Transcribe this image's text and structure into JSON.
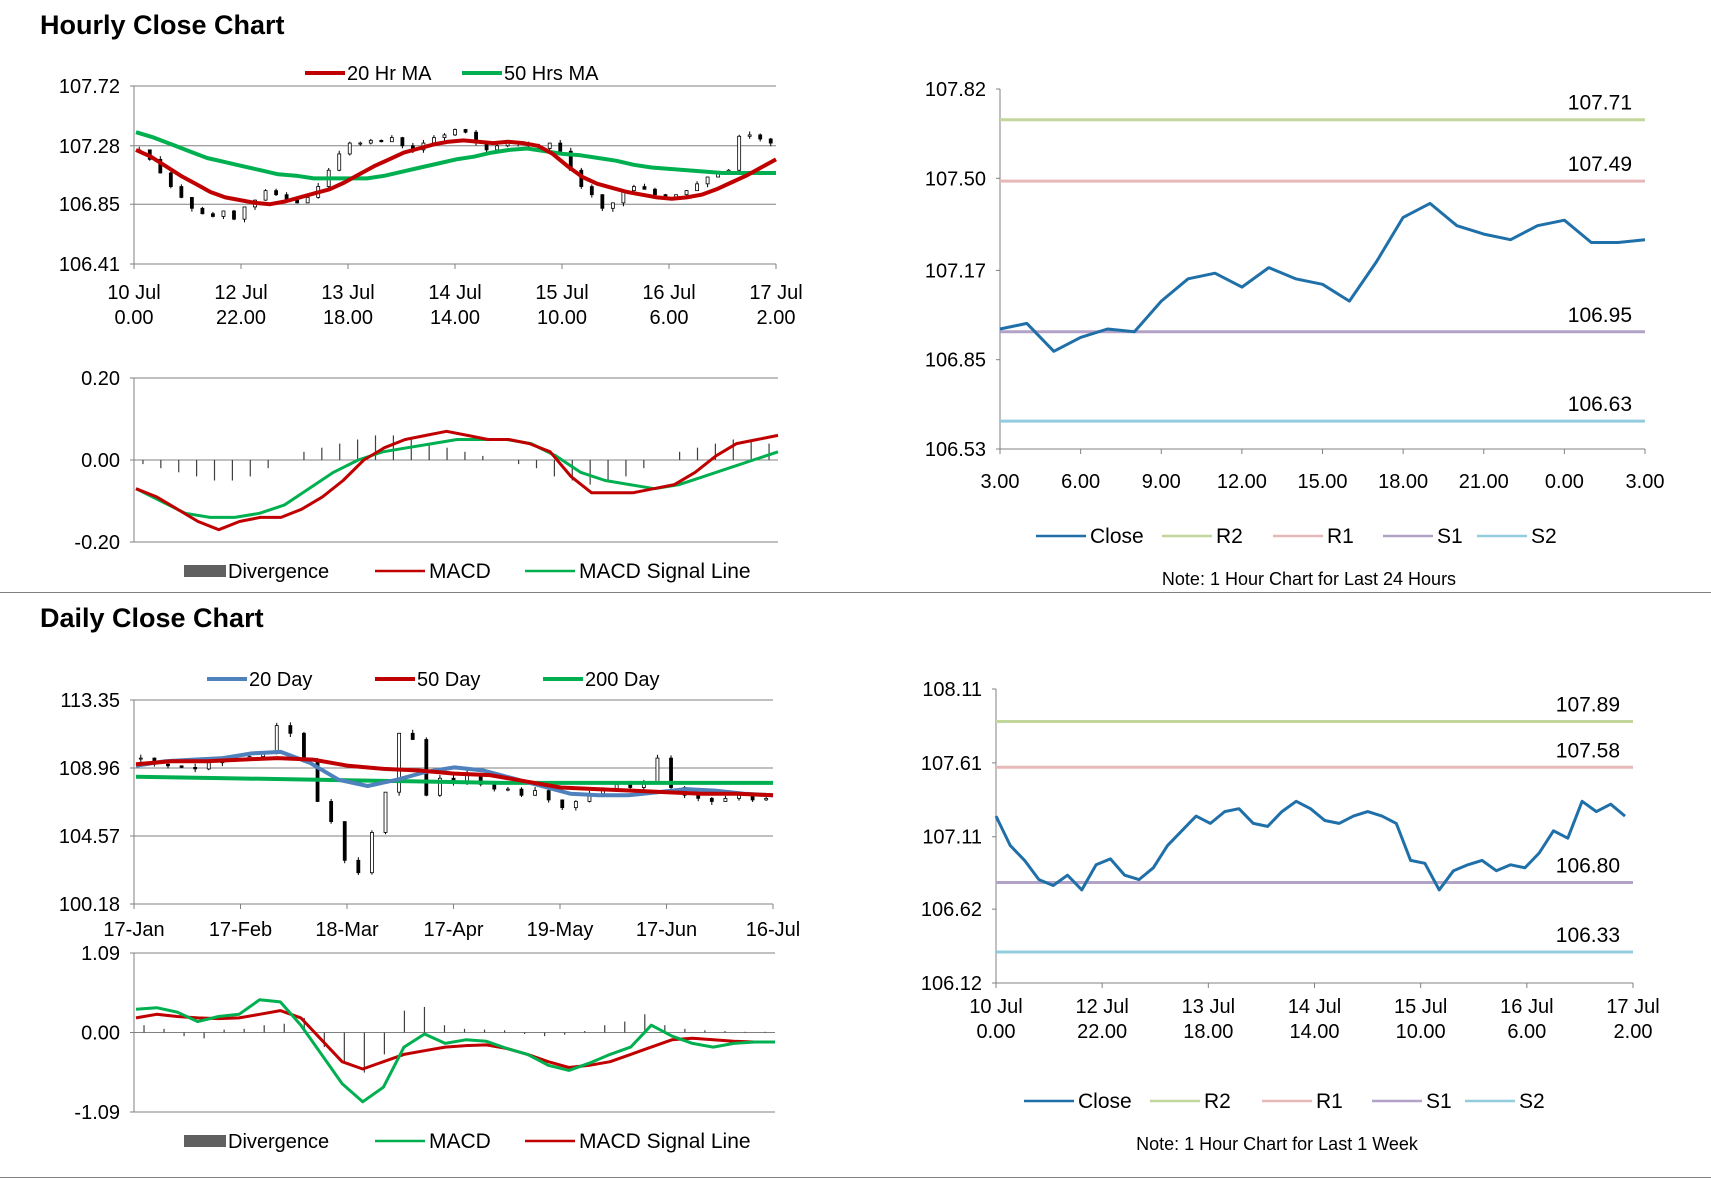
{
  "sections": {
    "hourly_title": "Hourly Close Chart",
    "daily_title": "Daily Close Chart"
  },
  "chart_data": [
    {
      "id": "hourly_price",
      "type": "candlestick+line",
      "title": "",
      "y_ticks": [
        "107.72",
        "107.28",
        "106.85",
        "106.41"
      ],
      "ylim": [
        106.41,
        107.72
      ],
      "x_ticks": [
        [
          "10 Jul",
          "0.00"
        ],
        [
          "12 Jul",
          "22.00"
        ],
        [
          "13 Jul",
          "18.00"
        ],
        [
          "14 Jul",
          "14.00"
        ],
        [
          "15 Jul",
          "10.00"
        ],
        [
          "16 Jul",
          "6.00"
        ],
        [
          "17 Jul",
          "2.00"
        ]
      ],
      "legend": [
        "20 Hr MA",
        "50 Hrs MA"
      ],
      "colors": {
        "ma20": "#c00000",
        "ma50": "#00b050",
        "candle": "#000000"
      },
      "close": [
        107.25,
        107.18,
        107.08,
        106.98,
        106.9,
        106.82,
        106.78,
        106.76,
        106.8,
        106.74,
        106.83,
        106.88,
        106.95,
        106.92,
        106.88,
        106.86,
        106.9,
        106.98,
        107.1,
        107.22,
        107.3,
        107.3,
        107.32,
        107.31,
        107.34,
        107.28,
        107.25,
        107.3,
        107.34,
        107.36,
        107.4,
        107.38,
        107.3,
        107.25,
        107.28,
        107.3,
        107.3,
        107.28,
        107.26,
        107.3,
        107.24,
        107.1,
        106.98,
        106.92,
        106.82,
        106.86,
        106.95,
        106.98,
        106.96,
        106.92,
        106.9,
        106.92,
        106.95,
        107.0,
        107.05,
        107.08,
        107.1,
        107.35,
        107.36,
        107.33,
        107.3
      ],
      "ma20": [
        107.25,
        107.2,
        107.13,
        107.06,
        107.0,
        106.94,
        106.9,
        106.88,
        106.86,
        106.85,
        106.87,
        106.9,
        106.93,
        106.96,
        107.01,
        107.07,
        107.13,
        107.18,
        107.23,
        107.26,
        107.29,
        107.31,
        107.32,
        107.31,
        107.3,
        107.31,
        107.3,
        107.28,
        107.22,
        107.13,
        107.05,
        107.0,
        106.97,
        106.94,
        106.92,
        106.9,
        106.89,
        106.9,
        106.92,
        106.96,
        107.01,
        107.06,
        107.12,
        107.18
      ],
      "ma50": [
        107.38,
        107.34,
        107.29,
        107.24,
        107.19,
        107.16,
        107.13,
        107.1,
        107.07,
        107.06,
        107.04,
        107.04,
        107.04,
        107.04,
        107.06,
        107.09,
        107.12,
        107.15,
        107.18,
        107.2,
        107.23,
        107.25,
        107.26,
        107.24,
        107.22,
        107.21,
        107.19,
        107.17,
        107.14,
        107.12,
        107.11,
        107.1,
        107.09,
        107.08,
        107.08,
        107.08,
        107.08
      ]
    },
    {
      "id": "hourly_macd",
      "type": "macd",
      "y_ticks": [
        "0.20",
        "0.00",
        "-0.20"
      ],
      "ylim": [
        -0.2,
        0.2
      ],
      "legend": [
        "Divergence",
        "MACD",
        "MACD Signal Line"
      ],
      "colors": {
        "macd": "#c00000",
        "signal": "#00b050",
        "divergence": "#404040"
      },
      "macd": [
        -0.07,
        -0.09,
        -0.12,
        -0.15,
        -0.17,
        -0.15,
        -0.14,
        -0.14,
        -0.12,
        -0.09,
        -0.05,
        0.0,
        0.03,
        0.05,
        0.06,
        0.07,
        0.06,
        0.05,
        0.05,
        0.04,
        0.02,
        -0.04,
        -0.08,
        -0.08,
        -0.08,
        -0.07,
        -0.06,
        -0.03,
        0.01,
        0.04,
        0.05,
        0.06
      ],
      "signal": [
        -0.07,
        -0.1,
        -0.13,
        -0.14,
        -0.14,
        -0.13,
        -0.11,
        -0.07,
        -0.03,
        0.0,
        0.02,
        0.03,
        0.04,
        0.05,
        0.05,
        0.05,
        0.04,
        0.01,
        -0.03,
        -0.05,
        -0.06,
        -0.07,
        -0.06,
        -0.04,
        -0.02,
        0.0,
        0.02
      ],
      "divergence": [
        -0.01,
        -0.02,
        -0.03,
        -0.04,
        -0.05,
        -0.05,
        -0.04,
        -0.02,
        0.0,
        0.02,
        0.03,
        0.04,
        0.05,
        0.06,
        0.06,
        0.05,
        0.04,
        0.03,
        0.02,
        0.01,
        0.0,
        -0.01,
        -0.02,
        -0.04,
        -0.05,
        -0.06,
        -0.05,
        -0.04,
        -0.02,
        0.0,
        0.02,
        0.03,
        0.04,
        0.05,
        0.05,
        0.04
      ]
    },
    {
      "id": "hourly_24h",
      "type": "line",
      "y_ticks": [
        "107.82",
        "107.50",
        "107.17",
        "106.85",
        "106.53"
      ],
      "ylim": [
        106.53,
        107.82
      ],
      "x_ticks": [
        "3.00",
        "6.00",
        "9.00",
        "12.00",
        "15.00",
        "18.00",
        "21.00",
        "0.00",
        "3.00"
      ],
      "x": [
        0,
        1,
        2,
        3,
        4,
        5,
        6,
        7,
        8,
        9,
        10,
        11,
        12,
        13,
        14,
        15,
        16,
        17,
        18,
        19,
        20,
        21,
        22,
        23,
        24
      ],
      "series": [
        {
          "name": "Close",
          "color": "#1f6fa8",
          "values": [
            106.96,
            106.98,
            106.88,
            106.93,
            106.96,
            106.95,
            107.06,
            107.14,
            107.16,
            107.11,
            107.18,
            107.14,
            107.12,
            107.06,
            107.2,
            107.36,
            107.41,
            107.33,
            107.3,
            107.28,
            107.33,
            107.35,
            107.27,
            107.27,
            107.28
          ]
        },
        {
          "name": "R2",
          "color": "#c3d69b",
          "value": 107.71,
          "label": "107.71"
        },
        {
          "name": "R1",
          "color": "#e6b9b8",
          "value": 107.49,
          "label": "107.49"
        },
        {
          "name": "S1",
          "color": "#b3a2c7",
          "value": 106.95,
          "label": "106.95"
        },
        {
          "name": "S2",
          "color": "#93cddd",
          "value": 106.63,
          "label": "106.63"
        }
      ],
      "note": "Note: 1 Hour Chart for Last 24 Hours"
    },
    {
      "id": "daily_price",
      "type": "candlestick+line",
      "y_ticks": [
        "113.35",
        "108.96",
        "104.57",
        "100.18"
      ],
      "ylim": [
        100.18,
        113.35
      ],
      "x_ticks": [
        "17-Jan",
        "17-Feb",
        "18-Mar",
        "17-Apr",
        "19-May",
        "17-Jun",
        "16-Jul"
      ],
      "legend": [
        "20 Day",
        "50 Day",
        "200 Day"
      ],
      "colors": {
        "ma20": "#4f81bd",
        "ma50": "#c00000",
        "ma200": "#00b050",
        "candle": "#000000"
      },
      "close": [
        109.6,
        109.2,
        109.1,
        109.0,
        108.9,
        109.3,
        109.5,
        109.6,
        109.7,
        109.9,
        111.7,
        111.2,
        109.5,
        106.8,
        105.5,
        103.0,
        102.2,
        104.8,
        107.4,
        111.2,
        110.8,
        107.2,
        108.3,
        108.0,
        108.6,
        107.9,
        107.6,
        107.6,
        107.2,
        107.5,
        106.9,
        106.4,
        106.8,
        107.3,
        107.6,
        107.9,
        107.7,
        108.0,
        109.6,
        107.7,
        107.2,
        107.0,
        106.8,
        107.0,
        107.2,
        106.9,
        107.0
      ],
      "ma20": [
        109.1,
        109.4,
        109.5,
        109.6,
        109.9,
        110.0,
        109.3,
        108.2,
        107.8,
        108.2,
        108.7,
        109.0,
        108.8,
        108.3,
        107.8,
        107.3,
        107.2,
        107.2,
        107.4,
        107.6,
        107.5,
        107.3,
        107.2
      ],
      "ma50": [
        109.2,
        109.4,
        109.4,
        109.5,
        109.6,
        109.5,
        109.1,
        108.9,
        108.8,
        108.6,
        108.5,
        108.1,
        107.7,
        107.6,
        107.5,
        107.4,
        107.3,
        107.3,
        107.2
      ],
      "ma200": [
        108.4,
        108.3,
        108.2,
        108.1,
        108.0,
        108.0,
        108.0,
        108.0
      ]
    },
    {
      "id": "daily_macd",
      "type": "macd",
      "y_ticks": [
        "1.09",
        "0.00",
        "-1.09"
      ],
      "ylim": [
        -1.09,
        1.09
      ],
      "legend": [
        "Divergence",
        "MACD",
        "MACD Signal Line"
      ],
      "colors": {
        "macd": "#00b050",
        "signal": "#c00000",
        "divergence": "#404040"
      },
      "macd": [
        0.32,
        0.34,
        0.28,
        0.15,
        0.22,
        0.25,
        0.45,
        0.42,
        0.1,
        -0.3,
        -0.7,
        -0.95,
        -0.75,
        -0.2,
        -0.02,
        -0.15,
        -0.1,
        -0.12,
        -0.22,
        -0.3,
        -0.45,
        -0.52,
        -0.42,
        -0.3,
        -0.2,
        0.1,
        -0.05,
        -0.15,
        -0.2,
        -0.15,
        -0.13,
        -0.13
      ],
      "signal": [
        0.2,
        0.25,
        0.22,
        0.2,
        0.19,
        0.2,
        0.25,
        0.3,
        0.2,
        -0.1,
        -0.4,
        -0.5,
        -0.4,
        -0.3,
        -0.25,
        -0.2,
        -0.18,
        -0.17,
        -0.22,
        -0.3,
        -0.4,
        -0.48,
        -0.45,
        -0.4,
        -0.3,
        -0.2,
        -0.1,
        -0.08,
        -0.1,
        -0.12,
        -0.13,
        -0.13
      ],
      "divergence": [
        0.1,
        0.05,
        -0.05,
        -0.08,
        0.04,
        0.05,
        0.1,
        0.12,
        0.2,
        -0.2,
        -0.4,
        -0.55,
        -0.3,
        0.3,
        0.35,
        0.1,
        0.05,
        0.04,
        0.03,
        -0.02,
        -0.05,
        -0.03,
        0.02,
        0.1,
        0.15,
        0.25,
        0.1,
        0.05,
        0.03,
        0.02,
        0.01,
        0.01
      ]
    },
    {
      "id": "hourly_week",
      "type": "line",
      "y_ticks": [
        "108.11",
        "107.61",
        "107.11",
        "106.62",
        "106.12"
      ],
      "ylim": [
        106.12,
        108.11
      ],
      "x_ticks": [
        [
          "10 Jul",
          "0.00"
        ],
        [
          "12 Jul",
          "22.00"
        ],
        [
          "13 Jul",
          "18.00"
        ],
        [
          "14 Jul",
          "14.00"
        ],
        [
          "15 Jul",
          "10.00"
        ],
        [
          "16 Jul",
          "6.00"
        ],
        [
          "17 Jul",
          "2.00"
        ]
      ],
      "series": [
        {
          "name": "Close",
          "color": "#1f6fa8",
          "values": [
            107.25,
            107.05,
            106.95,
            106.82,
            106.78,
            106.85,
            106.75,
            106.92,
            106.96,
            106.85,
            106.82,
            106.9,
            107.05,
            107.15,
            107.25,
            107.2,
            107.28,
            107.3,
            107.2,
            107.18,
            107.28,
            107.35,
            107.3,
            107.22,
            107.2,
            107.25,
            107.28,
            107.25,
            107.2,
            106.95,
            106.93,
            106.75,
            106.88,
            106.92,
            106.95,
            106.88,
            106.92,
            106.9,
            107.0,
            107.15,
            107.1,
            107.35,
            107.28,
            107.33,
            107.25
          ]
        },
        {
          "name": "R2",
          "color": "#c3d69b",
          "value": 107.89,
          "label": "107.89"
        },
        {
          "name": "R1",
          "color": "#e6b9b8",
          "value": 107.58,
          "label": "107.58"
        },
        {
          "name": "S1",
          "color": "#b3a2c7",
          "value": 106.8,
          "label": "106.80"
        },
        {
          "name": "S2",
          "color": "#93cddd",
          "value": 106.33,
          "label": "106.33"
        }
      ],
      "note": "Note: 1 Hour Chart for Last 1 Week"
    }
  ]
}
